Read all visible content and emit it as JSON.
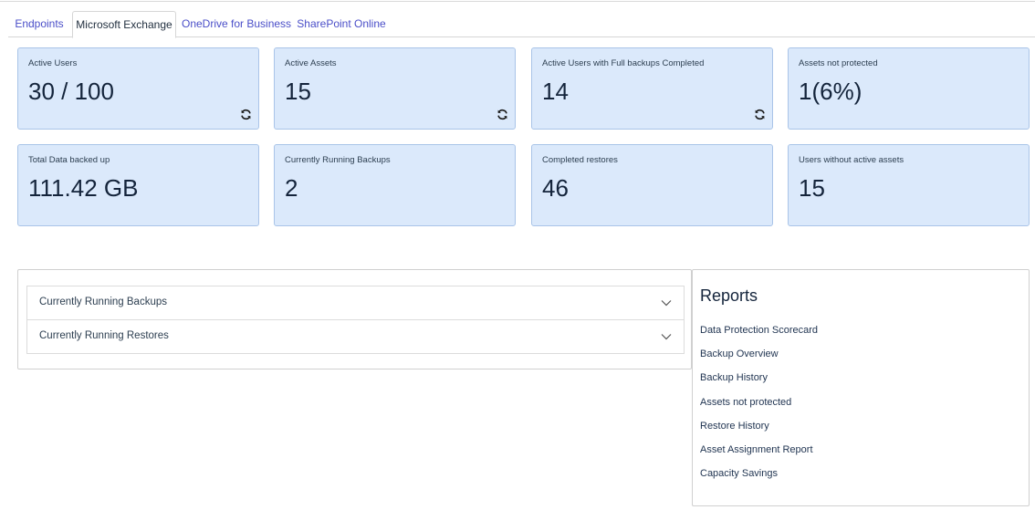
{
  "tabs": [
    {
      "label": "Endpoints"
    },
    {
      "label": "Microsoft Exchange"
    },
    {
      "label": "OneDrive for Business"
    },
    {
      "label": "SharePoint Online"
    }
  ],
  "cards": [
    {
      "label": "Active Users",
      "value": "30 / 100"
    },
    {
      "label": "Active Assets",
      "value": "15"
    },
    {
      "label": "Active Users with Full backups Completed",
      "value": "14"
    },
    {
      "label": "Assets not protected",
      "value": "1(6%)"
    },
    {
      "label": "Total Data backed up",
      "value": "111.42 GB"
    },
    {
      "label": "Currently Running Backups",
      "value": "2"
    },
    {
      "label": "Completed restores",
      "value": "46"
    },
    {
      "label": "Users without active assets",
      "value": "15"
    }
  ],
  "accordions": [
    {
      "label": "Currently Running Backups"
    },
    {
      "label": "Currently Running Restores"
    }
  ],
  "reports": {
    "title": "Reports",
    "links": [
      "Data Protection Scorecard",
      "Backup Overview",
      "Backup History",
      "Assets not protected",
      "Restore History",
      "Asset Assignment Report",
      "Capacity Savings"
    ]
  }
}
